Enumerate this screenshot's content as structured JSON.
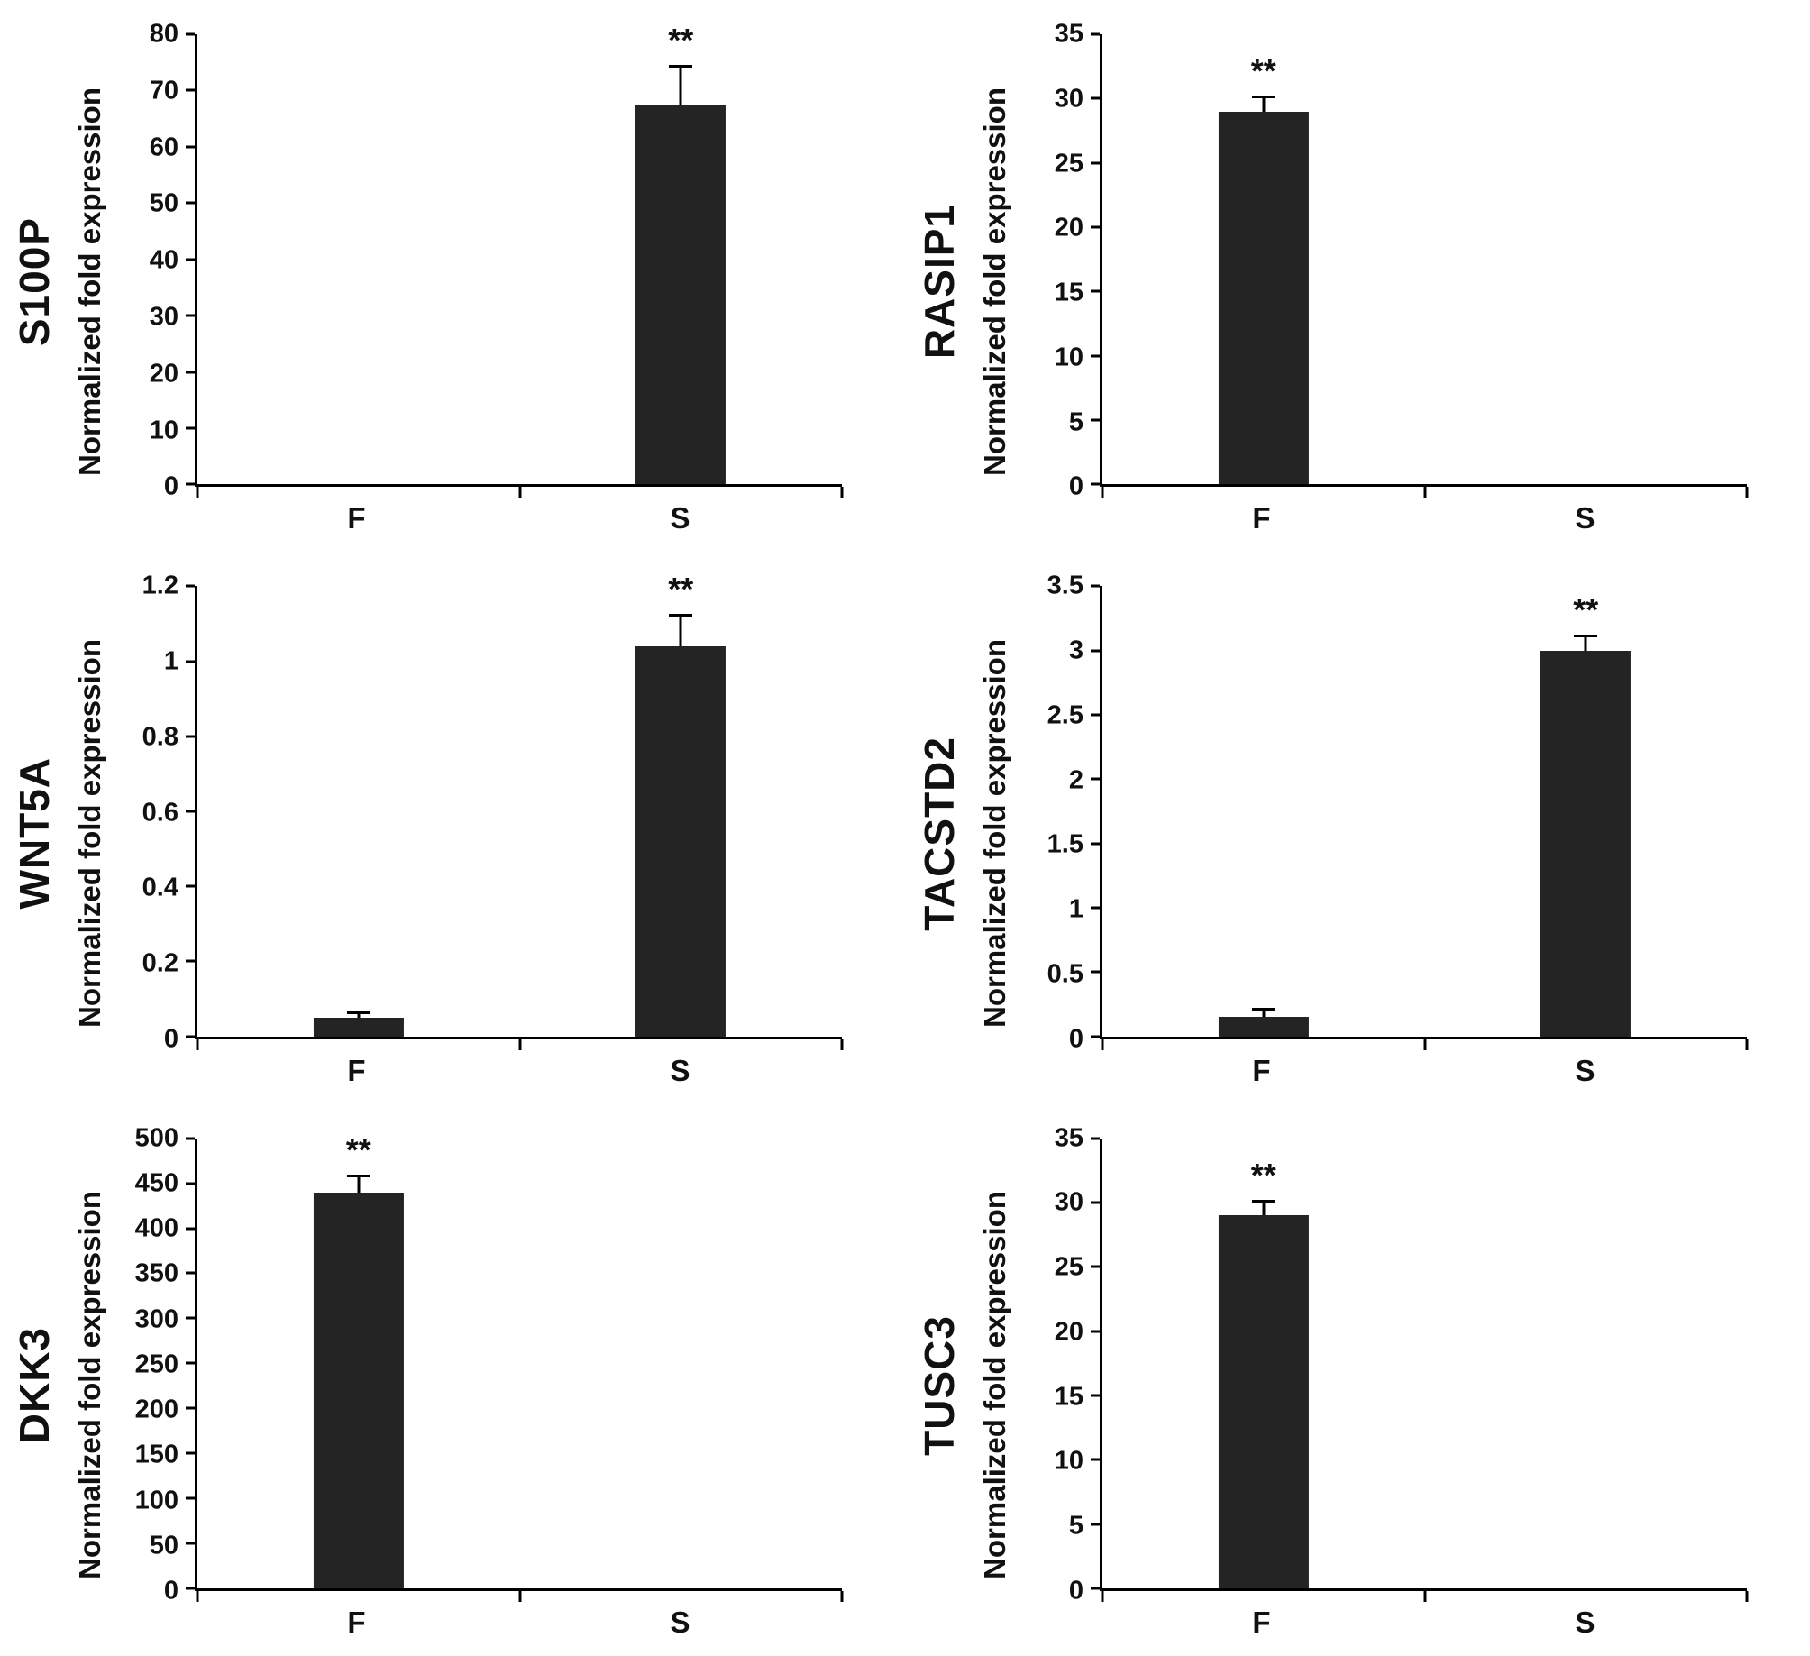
{
  "figure": {
    "background": "#ffffff",
    "bar_color": "#242424",
    "axis_color": "#000000",
    "significance_marker": "**"
  },
  "chart_data": [
    {
      "type": "bar",
      "gene": "S100P",
      "title": "S100P",
      "xlabel": "",
      "ylabel": "Normalized fold expression",
      "categories": [
        "F",
        "S"
      ],
      "values": [
        0,
        67.5
      ],
      "errors": [
        0,
        6.5
      ],
      "significance": [
        "",
        "**"
      ],
      "ylim": [
        0,
        80
      ],
      "yticks": [
        0,
        10,
        20,
        30,
        40,
        50,
        60,
        70,
        80
      ],
      "ytick_labels": [
        "0",
        "10",
        "20",
        "30",
        "40",
        "50",
        "60",
        "70",
        "80"
      ],
      "grid": false,
      "legend": false
    },
    {
      "type": "bar",
      "gene": "RASIP1",
      "title": "RASIP1",
      "xlabel": "",
      "ylabel": "Normalized fold expression",
      "categories": [
        "F",
        "S"
      ],
      "values": [
        29,
        0
      ],
      "errors": [
        1,
        0
      ],
      "significance": [
        "**",
        ""
      ],
      "ylim": [
        0,
        35
      ],
      "yticks": [
        0,
        5,
        10,
        15,
        20,
        25,
        30,
        35
      ],
      "ytick_labels": [
        "0",
        "5",
        "10",
        "15",
        "20",
        "25",
        "30",
        "35"
      ],
      "grid": false,
      "legend": false
    },
    {
      "type": "bar",
      "gene": "WNT5A",
      "title": "WNT5A",
      "xlabel": "",
      "ylabel": "Normalized fold expression",
      "categories": [
        "F",
        "S"
      ],
      "values": [
        0.05,
        1.04
      ],
      "errors": [
        0.01,
        0.08
      ],
      "significance": [
        "",
        "**"
      ],
      "ylim": [
        0,
        1.2
      ],
      "yticks": [
        0,
        0.2,
        0.4,
        0.6,
        0.8,
        1,
        1.2
      ],
      "ytick_labels": [
        "0",
        "0.2",
        "0.4",
        "0.6",
        "0.8",
        "1",
        "1.2"
      ],
      "grid": false,
      "legend": false
    },
    {
      "type": "bar",
      "gene": "TACSTD2",
      "title": "TACSTD2",
      "xlabel": "",
      "ylabel": "Normalized fold expression",
      "categories": [
        "F",
        "S"
      ],
      "values": [
        0.15,
        3.0
      ],
      "errors": [
        0.05,
        0.1
      ],
      "significance": [
        "",
        "**"
      ],
      "ylim": [
        0,
        3.5
      ],
      "yticks": [
        0,
        0.5,
        1,
        1.5,
        2,
        2.5,
        3,
        3.5
      ],
      "ytick_labels": [
        "0",
        "0.5",
        "1",
        "1.5",
        "2",
        "2.5",
        "3",
        "3.5"
      ],
      "grid": false,
      "legend": false
    },
    {
      "type": "bar",
      "gene": "DKK3",
      "title": "DKK3",
      "xlabel": "",
      "ylabel": "Normalized fold expression",
      "categories": [
        "F",
        "S"
      ],
      "values": [
        440,
        0
      ],
      "errors": [
        17,
        0
      ],
      "significance": [
        "**",
        ""
      ],
      "ylim": [
        0,
        500
      ],
      "yticks": [
        0,
        50,
        100,
        150,
        200,
        250,
        300,
        350,
        400,
        450,
        500
      ],
      "ytick_labels": [
        "0",
        "50",
        "100",
        "150",
        "200",
        "250",
        "300",
        "350",
        "400",
        "450",
        "500"
      ],
      "grid": false,
      "legend": false
    },
    {
      "type": "bar",
      "gene": "TUSC3",
      "title": "TUSC3",
      "xlabel": "",
      "ylabel": "Normalized fold expression",
      "categories": [
        "F",
        "S"
      ],
      "values": [
        29,
        0
      ],
      "errors": [
        1,
        0
      ],
      "significance": [
        "**",
        ""
      ],
      "ylim": [
        0,
        35
      ],
      "yticks": [
        0,
        5,
        10,
        15,
        20,
        25,
        30,
        35
      ],
      "ytick_labels": [
        "0",
        "5",
        "10",
        "15",
        "20",
        "25",
        "30",
        "35"
      ],
      "grid": false,
      "legend": false
    }
  ]
}
